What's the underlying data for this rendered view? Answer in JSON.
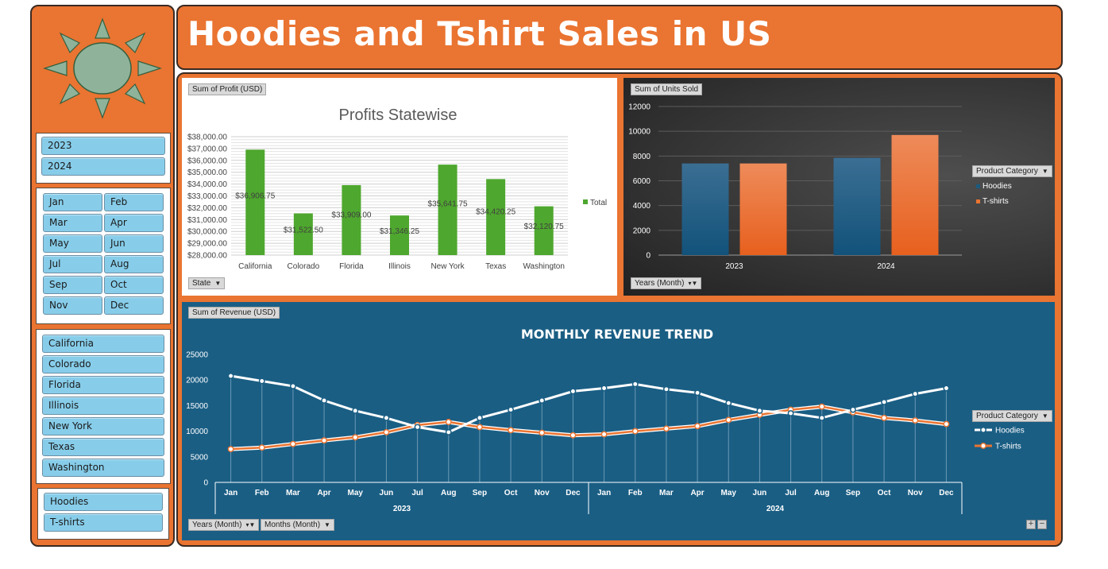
{
  "header": {
    "title": "Hoodies and Tshirt Sales in US"
  },
  "slicers": {
    "years": [
      "2023",
      "2024"
    ],
    "months": [
      "Jan",
      "Feb",
      "Mar",
      "Apr",
      "May",
      "Jun",
      "Jul",
      "Aug",
      "Sep",
      "Oct",
      "Nov",
      "Dec"
    ],
    "states": [
      "California",
      "Colorado",
      "Florida",
      "Illinois",
      "New York",
      "Texas",
      "Washington"
    ],
    "products": [
      "Hoodies",
      "T-shirts"
    ]
  },
  "colors": {
    "orange": "#ea7431",
    "slicer_button": "#87cdea",
    "profit_bar": "#4ea72e",
    "hoodies": "#1c5a7e",
    "tshirts": "#ea7431",
    "revenue_bg": "#1a5e84"
  },
  "chart_data": [
    {
      "id": "profit",
      "type": "bar",
      "title": "Profits Statewise",
      "field_button": "Sum of Profit (USD)",
      "axis_button": "State",
      "categories": [
        "California",
        "Colorado",
        "Florida",
        "Illinois",
        "New York",
        "Texas",
        "Washington"
      ],
      "values": [
        36906.75,
        31522.5,
        33909.0,
        31346.25,
        35641.75,
        34420.25,
        32120.75
      ],
      "data_labels": [
        "$36,906.75",
        "$31,522.50",
        "$33,909.00",
        "$31,346.25",
        "$35,641.75",
        "$34,420.25",
        "$32,120.75"
      ],
      "legend": "Total",
      "legend_position": "right",
      "ylim": [
        28000,
        38000
      ],
      "yticks": [
        "$28,000.00",
        "$29,000.00",
        "$30,000.00",
        "$31,000.00",
        "$32,000.00",
        "$33,000.00",
        "$34,000.00",
        "$35,000.00",
        "$36,000.00",
        "$37,000.00",
        "$38,000.00"
      ],
      "grid": true
    },
    {
      "id": "units",
      "type": "bar",
      "field_button": "Sum of Units Sold",
      "axis_button": "Years (Month)",
      "legend_title": "Product Category",
      "legend_position": "right",
      "categories": [
        "2023",
        "2024"
      ],
      "series": [
        {
          "name": "Hoodies",
          "values": [
            7400,
            7850
          ]
        },
        {
          "name": "T-shirts",
          "values": [
            7400,
            9700
          ]
        }
      ],
      "ylim": [
        0,
        12000
      ],
      "yticks": [
        "0",
        "2000",
        "4000",
        "6000",
        "8000",
        "10000",
        "12000"
      ],
      "grid": true
    },
    {
      "id": "revenue",
      "type": "line",
      "title": "MONTHLY REVENUE TREND",
      "field_button": "Sum of Revenue (USD)",
      "axis_buttons": [
        "Years (Month)",
        "Months (Month)"
      ],
      "legend_title": "Product Category",
      "legend_position": "right",
      "months": [
        "Jan",
        "Feb",
        "Mar",
        "Apr",
        "May",
        "Jun",
        "Jul",
        "Aug",
        "Sep",
        "Oct",
        "Nov",
        "Dec",
        "Jan",
        "Feb",
        "Mar",
        "Apr",
        "May",
        "Jun",
        "Jul",
        "Aug",
        "Sep",
        "Oct",
        "Nov",
        "Dec"
      ],
      "years": [
        "2023",
        "2024"
      ],
      "series": [
        {
          "name": "Hoodies",
          "values": [
            20800,
            19800,
            18800,
            16000,
            14000,
            12600,
            10800,
            9800,
            12600,
            14200,
            16000,
            17800,
            18400,
            19200,
            18200,
            17500,
            15500,
            14000,
            13500,
            12600,
            14200,
            15700,
            17300,
            18400
          ]
        },
        {
          "name": "T-shirts",
          "values": [
            6500,
            6800,
            7500,
            8200,
            8800,
            9800,
            11200,
            11800,
            10800,
            10200,
            9700,
            9200,
            9400,
            10000,
            10500,
            11000,
            12200,
            13200,
            14200,
            14800,
            13700,
            12600,
            12100,
            11400
          ]
        }
      ],
      "ylim": [
        0,
        25000
      ],
      "yticks": [
        "0",
        "5000",
        "10000",
        "15000",
        "20000",
        "25000"
      ],
      "grid": false
    }
  ]
}
